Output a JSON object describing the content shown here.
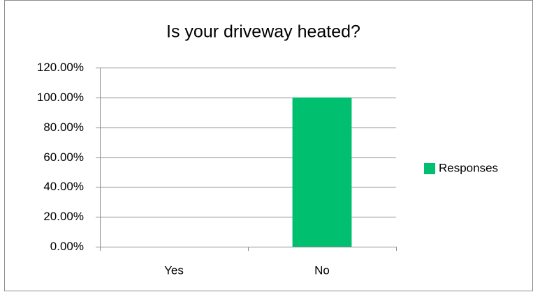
{
  "chart_data": {
    "type": "bar",
    "title": "Is your driveway heated?",
    "categories": [
      "Yes",
      "No"
    ],
    "series": [
      {
        "name": "Responses",
        "color": "#00bf6f",
        "values": [
          0,
          100
        ]
      }
    ],
    "ylim": [
      0,
      120
    ],
    "yticks": [
      {
        "value": 0,
        "label": "0.00%"
      },
      {
        "value": 20,
        "label": "20.00%"
      },
      {
        "value": 40,
        "label": "40.00%"
      },
      {
        "value": 60,
        "label": "60.00%"
      },
      {
        "value": 80,
        "label": "80.00%"
      },
      {
        "value": 100,
        "label": "100.00%"
      },
      {
        "value": 120,
        "label": "120.00%"
      }
    ],
    "grid": true,
    "legend": "right"
  }
}
